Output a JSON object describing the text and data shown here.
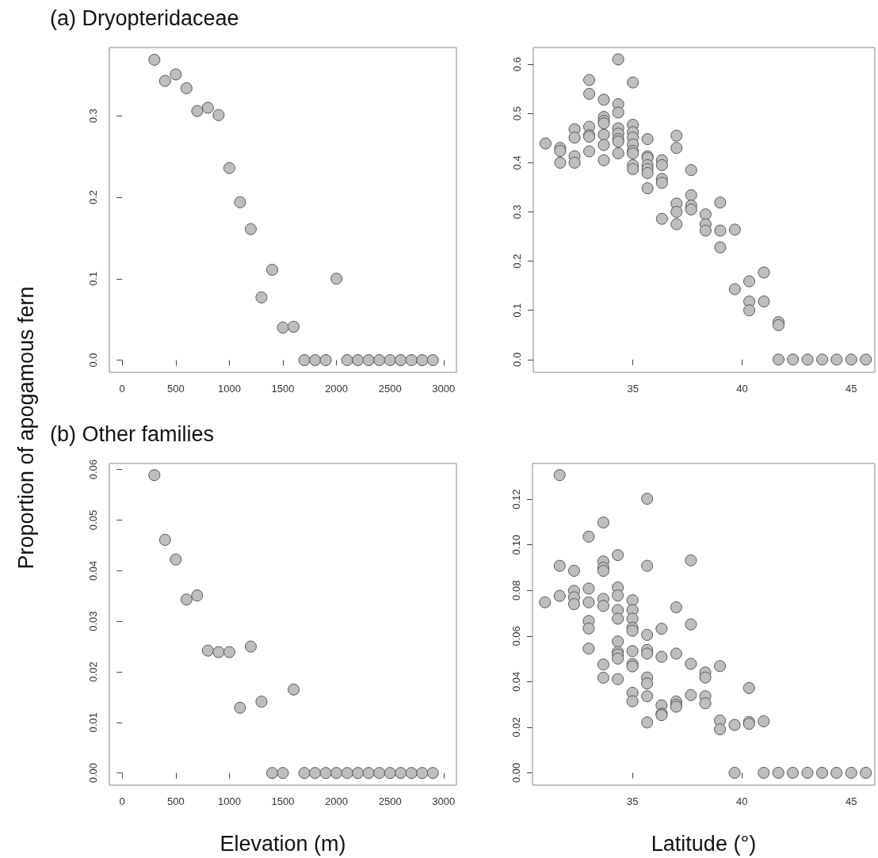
{
  "chart_data": [
    {
      "type": "scatter",
      "title": "(a) Dryopteridaceae",
      "ylabel": "Proportion of apogamous fern",
      "color": "#bebebe",
      "marker": "circle",
      "x": [
        300,
        400,
        500,
        600,
        700,
        800,
        900,
        1000,
        1100,
        1200,
        1300,
        1400,
        1500,
        1600,
        1700,
        1800,
        1900,
        2000,
        2100,
        2200,
        2300,
        2400,
        2500,
        2600,
        2700,
        2800,
        2900
      ],
      "values": [
        0.369,
        0.343,
        0.351,
        0.334,
        0.306,
        0.31,
        0.301,
        0.236,
        0.194,
        0.161,
        0.077,
        0.111,
        0.04,
        0.041,
        0,
        0,
        0,
        0.1,
        0,
        0,
        0,
        0,
        0,
        0,
        0,
        0,
        0
      ],
      "xlim": [
        -120,
        3120
      ],
      "ylim": [
        -0.015,
        0.384
      ],
      "xticks": [
        0,
        500,
        1000,
        1500,
        2000,
        2500,
        3000
      ],
      "yticks": [
        {
          "value": 0,
          "label": "0.0"
        },
        0.1,
        0.2,
        0.3
      ]
    },
    {
      "type": "scatter",
      "color": "#bebebe",
      "marker": "circle",
      "x": [
        31,
        31.67,
        31.67,
        31.67,
        32.33,
        32.33,
        32.33,
        32.33,
        33,
        33,
        33,
        33,
        33,
        33,
        33.67,
        33.67,
        33.67,
        33.67,
        33.67,
        33.67,
        33.67,
        34.33,
        34.33,
        34.33,
        34.33,
        34.33,
        34.33,
        34.33,
        34.33,
        35,
        35,
        35,
        35,
        35,
        35,
        35,
        35,
        35,
        35.67,
        35.67,
        35.67,
        35.67,
        35.67,
        35.67,
        35.67,
        36.33,
        36.33,
        36.33,
        36.33,
        36.33,
        37,
        37,
        37,
        37,
        37,
        37.67,
        37.67,
        37.67,
        37.67,
        38.33,
        38.33,
        38.33,
        39,
        39,
        39,
        39.67,
        39.67,
        40.33,
        40.33,
        40.33,
        41,
        41,
        41.67,
        41.67,
        41.67,
        42.33,
        43,
        43.67,
        44.33,
        45,
        45.67
      ],
      "values": [
        0.439,
        0.43,
        0.424,
        0.4,
        0.468,
        0.451,
        0.413,
        0.4,
        0.568,
        0.54,
        0.473,
        0.456,
        0.453,
        0.423,
        0.528,
        0.493,
        0.485,
        0.48,
        0.457,
        0.436,
        0.405,
        0.61,
        0.519,
        0.502,
        0.47,
        0.459,
        0.448,
        0.443,
        0.419,
        0.563,
        0.477,
        0.462,
        0.451,
        0.437,
        0.424,
        0.419,
        0.395,
        0.387,
        0.448,
        0.413,
        0.41,
        0.395,
        0.387,
        0.379,
        0.348,
        0.405,
        0.395,
        0.367,
        0.359,
        0.286,
        0.455,
        0.43,
        0.317,
        0.3,
        0.275,
        0.385,
        0.334,
        0.313,
        0.305,
        0.295,
        0.275,
        0.262,
        0.319,
        0.262,
        0.228,
        0.264,
        0.143,
        0.159,
        0.118,
        0.1,
        0.177,
        0.118,
        0.076,
        0.07,
        0,
        0,
        0,
        0,
        0,
        0,
        0
      ],
      "xlim": [
        30.44,
        46.08
      ],
      "ylim": [
        -0.026,
        0.634
      ],
      "xticks": [
        35,
        40,
        45
      ],
      "yticks": [
        {
          "value": 0,
          "label": "0.0"
        },
        0.1,
        0.2,
        0.3,
        0.4,
        0.5,
        0.6
      ]
    },
    {
      "type": "scatter",
      "title": "(b) Other families",
      "xlabel": "Elevation (m)",
      "color": "#bebebe",
      "marker": "circle",
      "x": [
        300,
        400,
        500,
        600,
        700,
        800,
        900,
        1000,
        1100,
        1200,
        1300,
        1400,
        1500,
        1600,
        1700,
        1800,
        1900,
        2000,
        2100,
        2200,
        2300,
        2400,
        2500,
        2600,
        2700,
        2800,
        2900
      ],
      "values": [
        0.0589,
        0.0461,
        0.0422,
        0.0343,
        0.0351,
        0.0242,
        0.0239,
        0.0239,
        0.0129,
        0.025,
        0.0141,
        0,
        0,
        0.0165,
        0,
        0,
        0,
        0,
        0,
        0,
        0,
        0,
        0,
        0,
        0,
        0,
        0
      ],
      "xlim": [
        -120,
        3120
      ],
      "ylim": [
        -0.0024,
        0.0612
      ],
      "xticks": [
        0,
        500,
        1000,
        1500,
        2000,
        2500,
        3000
      ],
      "yticks": [
        {
          "value": 0,
          "label": "0.00"
        },
        {
          "value": 0.01,
          "label": "0.01"
        },
        {
          "value": 0.02,
          "label": "0.02"
        },
        {
          "value": 0.03,
          "label": "0.03"
        },
        {
          "value": 0.04,
          "label": "0.04"
        },
        {
          "value": 0.05,
          "label": "0.05"
        },
        {
          "value": 0.06,
          "label": "0.06"
        }
      ]
    },
    {
      "type": "scatter",
      "xlabel": "Latitude (°)",
      "color": "#bebebe",
      "marker": "circle",
      "x": [
        31,
        31.67,
        31.67,
        31.67,
        32.33,
        32.33,
        32.33,
        32.33,
        33,
        33,
        33,
        33,
        33,
        33,
        33.67,
        33.67,
        33.67,
        33.67,
        33.67,
        33.67,
        33.67,
        33.67,
        34.33,
        34.33,
        34.33,
        34.33,
        34.33,
        34.33,
        34.33,
        34.33,
        34.33,
        34.33,
        35,
        35,
        35,
        35,
        35,
        35,
        35,
        35,
        35,
        35,
        35.67,
        35.67,
        35.67,
        35.67,
        35.67,
        35.67,
        35.67,
        35.67,
        35.67,
        36.33,
        36.33,
        36.33,
        36.33,
        36.33,
        37,
        37,
        37,
        37,
        37,
        37.67,
        37.67,
        37.67,
        37.67,
        38.33,
        38.33,
        38.33,
        38.33,
        39,
        39,
        39,
        39.67,
        39.67,
        40.33,
        40.33,
        40.33,
        41,
        41,
        41.67,
        42.33,
        43,
        43.67,
        44.33,
        45,
        45.67
      ],
      "values": [
        0.0748,
        0.1306,
        0.0908,
        0.0776,
        0.0886,
        0.0798,
        0.077,
        0.074,
        0.1036,
        0.0808,
        0.0748,
        0.0666,
        0.0633,
        0.0545,
        0.1098,
        0.0927,
        0.09,
        0.0886,
        0.0763,
        0.0732,
        0.0475,
        0.0417,
        0.0955,
        0.0813,
        0.0778,
        0.0714,
        0.0676,
        0.0576,
        0.053,
        0.0519,
        0.0501,
        0.0411,
        0.0757,
        0.0714,
        0.0676,
        0.0636,
        0.0623,
        0.0534,
        0.0477,
        0.0467,
        0.0351,
        0.0314,
        0.1202,
        0.0908,
        0.0605,
        0.0539,
        0.0523,
        0.0418,
        0.0392,
        0.0336,
        0.0221,
        0.0632,
        0.0509,
        0.0296,
        0.0259,
        0.0253,
        0.0726,
        0.0523,
        0.0313,
        0.0299,
        0.029,
        0.0932,
        0.0651,
        0.0478,
        0.0341,
        0.044,
        0.0418,
        0.0336,
        0.0305,
        0.0468,
        0.0229,
        0.0191,
        0.021,
        0,
        0.0372,
        0.0223,
        0.0215,
        0.0226,
        0,
        0,
        0,
        0,
        0,
        0,
        0,
        0
      ],
      "xlim": [
        30.43,
        46.08
      ],
      "ylim": [
        -0.0054,
        0.1357
      ],
      "xticks": [
        35,
        40,
        45
      ],
      "yticks": [
        {
          "value": 0,
          "label": "0.00"
        },
        0.02,
        0.04,
        0.06,
        0.08,
        {
          "value": 0.1,
          "label": "0.10"
        },
        0.12
      ]
    }
  ]
}
